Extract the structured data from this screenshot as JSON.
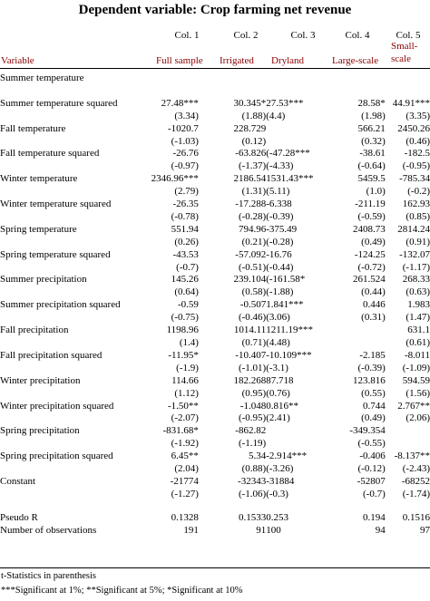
{
  "title": "Dependent variable: Crop farming net revenue",
  "columns": [
    {
      "num": "Col. 1",
      "label": "Full sample"
    },
    {
      "num": "Col. 2",
      "label": "Irrigated"
    },
    {
      "num": "Col. 3",
      "label": "Dryland"
    },
    {
      "num": "Col. 4",
      "label": "Large-scale"
    },
    {
      "num": "Col. 5",
      "label": "Small-\nscale"
    }
  ],
  "variable_header": "Variable",
  "rows": [
    [
      "Summer temperature",
      "",
      "",
      "",
      "",
      ""
    ],
    [
      "",
      "",
      "",
      "",
      "",
      ""
    ],
    [
      "Summer temperature squared",
      "27.48***",
      "30.345*",
      "27.53***",
      "28.58*",
      "44.91***"
    ],
    [
      "",
      "(3.34)",
      "(1.88)",
      "(4.4)",
      "(1.98)",
      "(3.35)"
    ],
    [
      "Fall temperature",
      "-1020.7",
      "228.729",
      "",
      "566.21",
      "2450.26"
    ],
    [
      "",
      "(-1.03)",
      "(0.12)",
      "",
      "(0.32)",
      "(0.46)"
    ],
    [
      "Fall temperature squared",
      "-26.76",
      "-63.826",
      "(-47.28***",
      "-38.61",
      "-182.5"
    ],
    [
      "",
      "(-0.97)",
      "(-1.37)",
      "(-4.33)",
      "(-0.64)",
      "(-0.95)"
    ],
    [
      "Winter temperature",
      "2346.96***",
      "2186.54",
      "1531.43***",
      "5459.5",
      "-785.34"
    ],
    [
      "",
      "(2.79)",
      "(1.31)",
      "(5.11)",
      "(1.0)",
      "(-0.2)"
    ],
    [
      "Winter temperature squared",
      "-26.35",
      "-17.288",
      "-6.338",
      "-211.19",
      "162.93"
    ],
    [
      "",
      "(-0.78)",
      "(-0.28)",
      "(-0.39)",
      "(-0.59)",
      "(0.85)"
    ],
    [
      "Spring temperature",
      "551.94",
      "794.96",
      "-375.49",
      "2408.73",
      "2814.24"
    ],
    [
      "",
      "(0.26)",
      "(0.21)",
      "(-0.28)",
      "(0.49)",
      "(0.91)"
    ],
    [
      "Spring temperature squared",
      "-43.53",
      "-57.092",
      "-16.76",
      "-124.25",
      "-132.07"
    ],
    [
      "",
      "(-0.7)",
      "(-0.51)",
      "(-0.44)",
      "(-0.72)",
      "(-1.17)"
    ],
    [
      "Summer precipitation",
      "145.26",
      "239.104",
      "(-161.58*",
      "261.524",
      "268.33"
    ],
    [
      "",
      "(0.64)",
      "(0.58)",
      "(-1.88)",
      "(0.44)",
      "(0.63)"
    ],
    [
      "Summer precipitation squared",
      "-0.59",
      "-0.507",
      "1.841***",
      "0.446",
      "1.983"
    ],
    [
      "",
      "(-0.75)",
      "(-0.46)",
      "(3.06)",
      "(0.31)",
      "(1.47)"
    ],
    [
      "Fall precipitation",
      "1198.96",
      "1014.11",
      "1211.19***",
      "",
      "631.1"
    ],
    [
      "",
      "(1.4)",
      "(0.71)",
      "(4.48)",
      "",
      "(0.61)"
    ],
    [
      "Fall precipitation squared",
      "-11.95*",
      "-10.407",
      "-10.109***",
      "-2.185",
      "-8.011"
    ],
    [
      "",
      "(-1.9)",
      "(-1.01)",
      "(-3.1)",
      "(-0.39)",
      "(-1.09)"
    ],
    [
      "Winter precipitation",
      "114.66",
      "182.268",
      "87.718",
      "123.816",
      "594.59"
    ],
    [
      "",
      "(1.12)",
      "(0.95)",
      "(0.76)",
      "(0.55)",
      "(1.56)"
    ],
    [
      "Winter precipitation squared",
      "-1.50**",
      "-1.048",
      "0.816**",
      "0.744",
      "2.767**"
    ],
    [
      "",
      "(-2.07)",
      "(-0.95)",
      "(2.41)",
      "(0.49)",
      "(2.06)"
    ],
    [
      "Spring precipitation",
      "-831.68*",
      "-862.82",
      "",
      "-349.354",
      ""
    ],
    [
      "",
      "(-1.92)",
      "(-1.19)",
      "",
      "(-0.55)",
      ""
    ],
    [
      "Spring precipitation squared",
      "6.45**",
      "5.34",
      "-2.914***",
      "-0.406",
      "-8.137**"
    ],
    [
      "",
      "(2.04)",
      "(0.88)",
      "(-3.26)",
      "(-0.12)",
      "(-2.43)"
    ],
    [
      "Constant",
      "-21774",
      "-32343",
      "-31884",
      "-52807",
      "-68252"
    ],
    [
      "",
      "(-1.27)",
      "(-1.06)",
      "(-0.3)",
      "(-0.7)",
      "(-1.74)"
    ]
  ],
  "stats_rows": [
    [
      "Pseudo R",
      "0.1328",
      "0.1533",
      "0.253",
      "0.194",
      "0.1516"
    ],
    [
      "Number of observations",
      "191",
      "91",
      "100",
      "94",
      "97"
    ]
  ],
  "notes": {
    "line1": "t-Statistics in parenthesis",
    "line2": "***Significant at 1%;   **Significant at 5%;   *Significant at 10%"
  },
  "colors": {
    "label_accent": "#8b0000",
    "text": "#000000",
    "rule": "#000000"
  }
}
